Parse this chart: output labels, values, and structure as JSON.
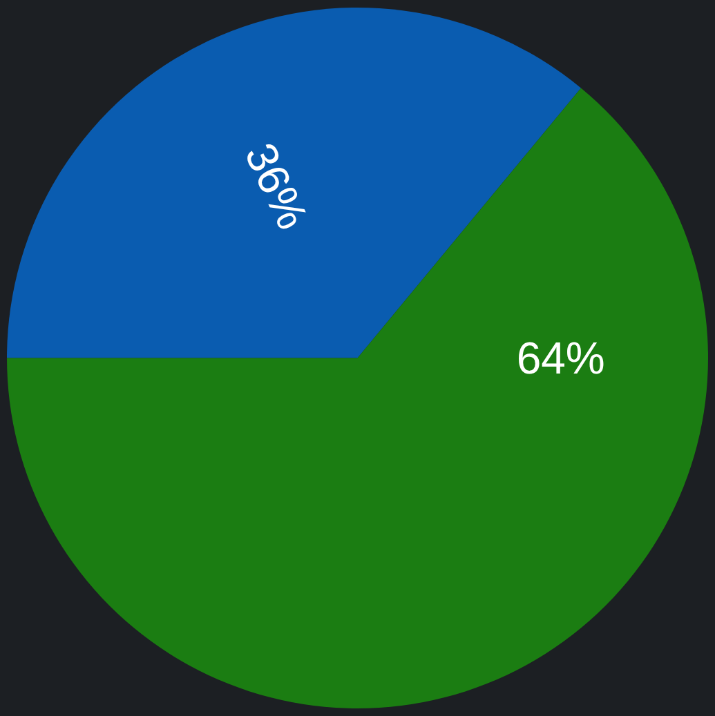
{
  "chart_data": {
    "type": "pie",
    "categories": [
      null,
      null
    ],
    "values": [
      36,
      64
    ],
    "colors": [
      "#0a5cb0",
      "#1b7d12"
    ],
    "value_labels": [
      "36%",
      "64%"
    ],
    "legend": false
  }
}
